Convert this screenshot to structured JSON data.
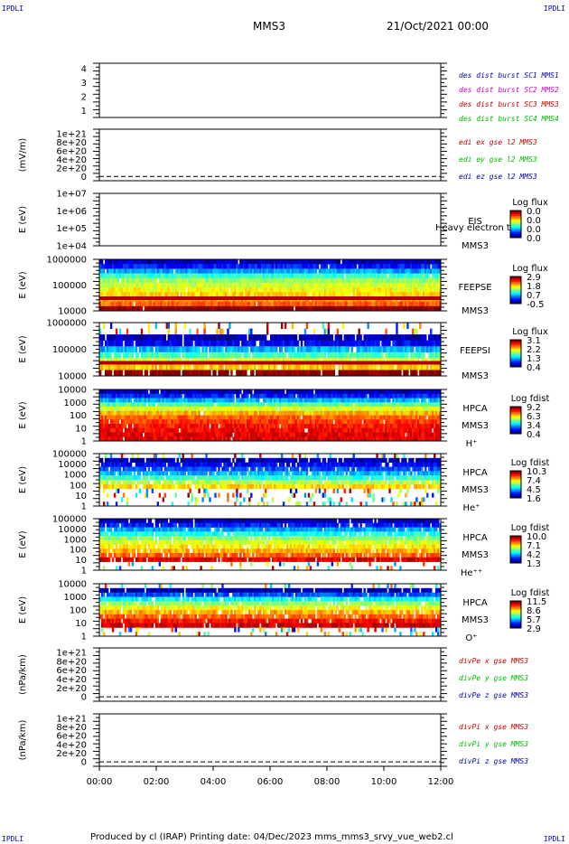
{
  "header": {
    "corner_label": "IPDLI",
    "spacecraft": "MMS3",
    "datetime": "21/Oct/2021 00:00"
  },
  "footer": {
    "credit": "Produced by cl (IRAP)   Printing date: 04/Dec/2023   mms_mms3_srvy_vue_web2.cl"
  },
  "colors": {
    "red": "#cc0000",
    "green": "#00bb00",
    "blue": "#0000aa",
    "magenta": "#cc00cc",
    "sc1": "#0000cc",
    "sc2": "#cc00cc",
    "sc3": "#cc0000",
    "sc4": "#00bb00"
  },
  "x_ticks": [
    "00:00",
    "02:00",
    "04:00",
    "06:00",
    "08:00",
    "10:00",
    "12:00"
  ],
  "chart_data": [
    {
      "type": "line",
      "name": "burst",
      "xlim": [
        0,
        12
      ],
      "ylim": [
        0.5,
        4.4
      ],
      "y_ticks": [
        "1",
        "2",
        "3",
        "4"
      ],
      "ylabel": "",
      "series": [
        {
          "name": "des dist burst SC1 MMS1",
          "color": "#0000cc",
          "values": []
        },
        {
          "name": "des dist burst SC2 MMS2",
          "color": "#cc00cc",
          "values": []
        },
        {
          "name": "des dist burst SC3 MMS3",
          "color": "#cc0000",
          "values": []
        },
        {
          "name": "des dist burst SC4 MMS4",
          "color": "#00bb00",
          "values": []
        }
      ],
      "dashed_zero": false
    },
    {
      "type": "line",
      "name": "edi",
      "xlim": [
        0,
        12
      ],
      "ylim": [
        -1e+20,
        1.1e+21
      ],
      "y_ticks": [
        "1e+21",
        "8e+20",
        "6e+20",
        "4e+20",
        "2e+20",
        "0"
      ],
      "ylabel": "(mV/m)",
      "series": [
        {
          "name": "edi ex gse l2 MMS3",
          "color": "#cc0000",
          "values": []
        },
        {
          "name": "edi ey gse l2 MMS3",
          "color": "#00bb00",
          "values": []
        },
        {
          "name": "edi ez gse l2 MMS3",
          "color": "#0000aa",
          "values": []
        }
      ],
      "dashed_zero": true
    },
    {
      "type": "heatmap",
      "name": "eis",
      "ylog": true,
      "ylim": [
        10000,
        10000000
      ],
      "y_ticks": [
        "1e+07",
        "1e+06",
        "1e+05",
        "1e+04"
      ],
      "ylabel": "E (eV)",
      "labels": [
        "EIS",
        "MMS3"
      ],
      "overlay_text": "Heavy electron to",
      "colorbar": {
        "title": "Log flux",
        "ticks": [
          "0.0",
          "0.0",
          "0.0",
          "0.0"
        ]
      },
      "spectrum": null
    },
    {
      "type": "heatmap",
      "name": "feeps-e",
      "ylog": true,
      "ylim": [
        10000,
        1000000
      ],
      "y_ticks": [
        "1000000",
        "100000",
        "10000"
      ],
      "ylabel": "E (eV)",
      "labels": [
        "FEEPSE",
        "MMS3"
      ],
      "colorbar": {
        "title": "Log flux",
        "ticks": [
          "2.9",
          "1.8",
          "0.7",
          "-0.5"
        ]
      },
      "spectrum": {
        "rows_from_top": [
          0.05,
          0.15,
          0.28,
          0.42,
          0.52,
          0.58,
          0.62,
          0.66,
          0.72,
          0.78,
          1.0
        ],
        "red_band": true,
        "speckle": 0.08
      }
    },
    {
      "type": "heatmap",
      "name": "feeps-i",
      "ylog": true,
      "ylim": [
        10000,
        1000000
      ],
      "y_ticks": [
        "1000000",
        "100000",
        "10000"
      ],
      "ylabel": "E (eV)",
      "labels": [
        "FEEPSI",
        "MMS3"
      ],
      "colorbar": {
        "title": "Log flux",
        "ticks": [
          "3.1",
          "2.2",
          "1.3",
          "0.4"
        ]
      },
      "spectrum": {
        "rows_from_top": [
          -1,
          -1,
          0.05,
          0.12,
          0.3,
          0.45,
          0.6,
          0.68,
          1.0
        ],
        "red_band": true,
        "speckle": 0.5
      }
    },
    {
      "type": "heatmap",
      "name": "hpca-h",
      "ylog": true,
      "ylim": [
        1,
        30000
      ],
      "y_ticks": [
        "10000",
        "1000",
        "100",
        "10",
        "1"
      ],
      "ylabel": "E (eV)",
      "labels": [
        "HPCA",
        "MMS3",
        "H⁺"
      ],
      "colorbar": {
        "title": "Log fdist",
        "ticks": [
          "9.2",
          "6.3",
          "3.4",
          "0.4"
        ]
      },
      "spectrum": {
        "rows_from_top": [
          0.05,
          0.15,
          0.3,
          0.45,
          0.6,
          0.7,
          0.78,
          0.82,
          0.86,
          0.88,
          0.9,
          0.9
        ],
        "red_band": false,
        "speckle": 0.15
      }
    },
    {
      "type": "heatmap",
      "name": "hpca-he",
      "ylog": true,
      "ylim": [
        1,
        100000
      ],
      "y_ticks": [
        "100000",
        "10000",
        "1000",
        "100",
        "10",
        "1"
      ],
      "ylabel": "E (eV)",
      "labels": [
        "HPCA",
        "MMS3",
        "He⁺"
      ],
      "colorbar": {
        "title": "Log fdist",
        "ticks": [
          "10.3",
          "7.4",
          "4.5",
          "1.6"
        ]
      },
      "spectrum": {
        "rows_from_top": [
          -1,
          0.05,
          0.12,
          0.2,
          0.3,
          0.42,
          0.55,
          0.66,
          -1,
          -1,
          -1,
          -1
        ],
        "red_band": false,
        "speckle": 0.6
      }
    },
    {
      "type": "heatmap",
      "name": "hpca-hepp",
      "ylog": true,
      "ylim": [
        1,
        100000
      ],
      "y_ticks": [
        "100000",
        "10000",
        "1000",
        "100",
        "10",
        "1"
      ],
      "ylabel": "E (eV)",
      "labels": [
        "HPCA",
        "MMS3",
        "He⁺⁺"
      ],
      "colorbar": {
        "title": "Log fdist",
        "ticks": [
          "10.0",
          "7.1",
          "4.2",
          "1.3"
        ]
      },
      "spectrum": {
        "rows_from_top": [
          0.05,
          0.15,
          0.28,
          0.4,
          0.5,
          0.58,
          0.64,
          0.7,
          0.78,
          0.9,
          -1,
          -1
        ],
        "red_band": false,
        "speckle": 0.45
      }
    },
    {
      "type": "heatmap",
      "name": "hpca-o",
      "ylog": true,
      "ylim": [
        1,
        100000
      ],
      "y_ticks": [
        "10000",
        "1000",
        "100",
        "10",
        "1"
      ],
      "ylabel": "E (eV)",
      "labels": [
        "HPCA",
        "MMS3",
        "O⁺"
      ],
      "colorbar": {
        "title": "Log fdist",
        "ticks": [
          "11.5",
          "8.6",
          "5.7",
          "2.9"
        ]
      },
      "spectrum": {
        "rows_from_top": [
          -1,
          0.05,
          0.2,
          0.38,
          0.52,
          0.62,
          0.7,
          0.78,
          0.86,
          0.92,
          -1,
          -1
        ],
        "red_band": false,
        "speckle": 0.55
      }
    },
    {
      "type": "line",
      "name": "divpe",
      "xlim": [
        0,
        12
      ],
      "ylim": [
        -1e+20,
        1.1e+21
      ],
      "y_ticks": [
        "1e+21",
        "8e+20",
        "6e+20",
        "4e+20",
        "2e+20",
        "0"
      ],
      "ylabel": "(nPa/km)",
      "series": [
        {
          "name": "divPe x gse MMS3",
          "color": "#cc0000",
          "values": []
        },
        {
          "name": "divPe y gse MMS3",
          "color": "#00bb00",
          "values": []
        },
        {
          "name": "divPe z gse MMS3",
          "color": "#0000aa",
          "values": []
        }
      ],
      "dashed_zero": true
    },
    {
      "type": "line",
      "name": "divpi",
      "xlim": [
        0,
        12
      ],
      "ylim": [
        -1e+20,
        1.1e+21
      ],
      "y_ticks": [
        "1e+21",
        "8e+20",
        "6e+20",
        "4e+20",
        "2e+20",
        "0"
      ],
      "ylabel": "(nPa/km)",
      "series": [
        {
          "name": "divPi x gse MMS3",
          "color": "#cc0000",
          "values": []
        },
        {
          "name": "divPi y gse MMS3",
          "color": "#00bb00",
          "values": []
        },
        {
          "name": "divPi z gse MMS3",
          "color": "#0000aa",
          "values": []
        }
      ],
      "dashed_zero": true
    }
  ]
}
